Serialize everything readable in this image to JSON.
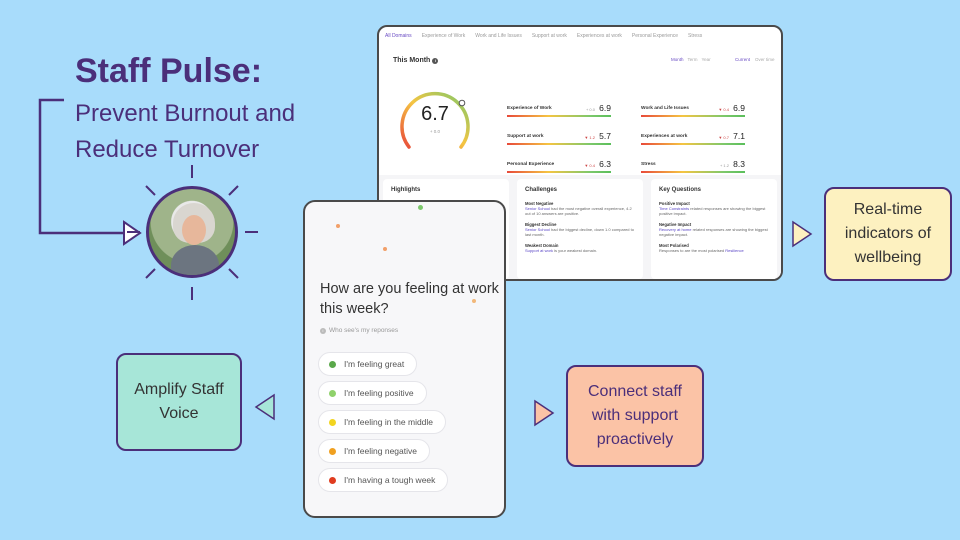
{
  "heading": {
    "title": "Staff Pulse:",
    "subtitle_line1": "Prevent Burnout and",
    "subtitle_line2": "Reduce Turnover"
  },
  "dashboard": {
    "tabs": [
      "All Domains",
      "Experience of Work",
      "Work and Life Issues",
      "Support at work",
      "Experiences at work",
      "Personal Experience",
      "Stress"
    ],
    "period_label": "This Month",
    "period_options": [
      "Month",
      "Term",
      "Year"
    ],
    "compare_options": [
      "Current",
      "Over time"
    ],
    "overall_score": "6.7",
    "overall_delta": "+ 0.0",
    "metrics": [
      {
        "name": "Experience of Work",
        "delta": "+ 0.0",
        "value": "6.9",
        "negative": false
      },
      {
        "name": "Work and Life Issues",
        "delta": "▼ 0.4",
        "value": "6.9",
        "negative": true
      },
      {
        "name": "Support at work",
        "delta": "▼ 1.2",
        "value": "5.7",
        "negative": true
      },
      {
        "name": "Experiences at work",
        "delta": "▼ 0.7",
        "value": "7.1",
        "negative": true
      },
      {
        "name": "Personal Experience",
        "delta": "▼ 0.4",
        "value": "6.3",
        "negative": true
      },
      {
        "name": "Stress",
        "delta": "+ 1.2",
        "value": "8.3",
        "negative": false
      }
    ],
    "panels": {
      "highlights": {
        "title": "Highlights"
      },
      "challenges": {
        "title": "Challenges",
        "items": [
          {
            "title": "Most Negative",
            "link": "Senior School",
            "text": " had the most negative overall experience, 4.2 out of 10 answers are positive."
          },
          {
            "title": "Biggest Decline",
            "link": "Senior School",
            "text": " had the biggest decline, down 1.0 compared to last month."
          },
          {
            "title": "Weakest Domain",
            "link": "Support at work",
            "text": " is your weakest domain."
          }
        ]
      },
      "questions": {
        "title": "Key Questions",
        "items": [
          {
            "title": "Positive Impact",
            "link": "Time Constraints",
            "text": " related responses are showing the biggest positive impact."
          },
          {
            "title": "Negative Impact",
            "link": "Recovery at home",
            "text": " related responses are showing the biggest negative impact."
          },
          {
            "title": "Most Polarised",
            "link": "Resilience",
            "text": "Responses to  are the most polarised"
          }
        ]
      }
    }
  },
  "phone": {
    "question": "How are you feeling at work this week?",
    "who_sees": "Who see's my reponses",
    "options": [
      {
        "label": "I'm feeling great",
        "color": "#5aa84a"
      },
      {
        "label": "I'm feeling positive",
        "color": "#8fd16b"
      },
      {
        "label": "I'm feeling in the middle",
        "color": "#f2d41f"
      },
      {
        "label": "I'm feeling negative",
        "color": "#f0a020"
      },
      {
        "label": "I'm having a tough week",
        "color": "#e03c1f"
      }
    ]
  },
  "callouts": {
    "realtime": [
      "Real-time",
      "indicators of",
      "wellbeing"
    ],
    "amplify": [
      "Amplify Staff",
      "Voice"
    ],
    "connect": [
      "Connect staff",
      "with support",
      "proactively"
    ]
  },
  "colors": {
    "background": "#a8dcfb",
    "brand_purple": "#4b2f7a",
    "accent_link": "#5a46c6"
  }
}
